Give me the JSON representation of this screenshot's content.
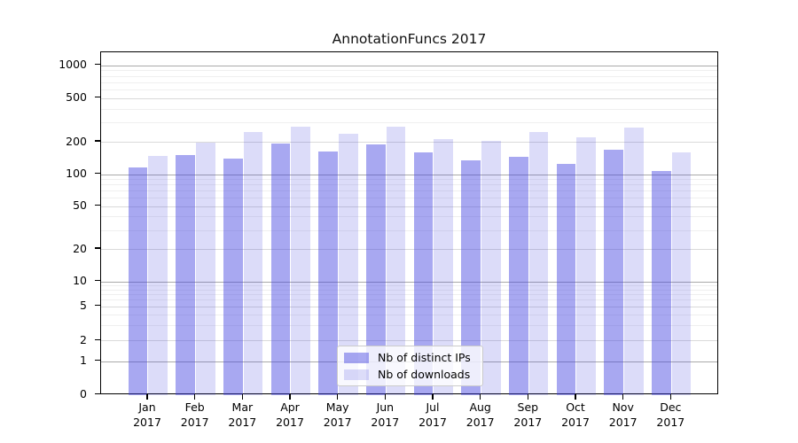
{
  "chart_data": {
    "type": "bar",
    "title": "AnnotationFuncs 2017",
    "yscale": "symlog",
    "grid": true,
    "legend_position": "lower center",
    "ylim": [
      0,
      1300
    ],
    "yticks": [
      0,
      1,
      2,
      5,
      10,
      20,
      50,
      100,
      200,
      500,
      1000
    ],
    "categories": [
      "Jan",
      "Feb",
      "Mar",
      "Apr",
      "May",
      "Jun",
      "Jul",
      "Aug",
      "Sep",
      "Oct",
      "Nov",
      "Dec"
    ],
    "x_ticks": [
      {
        "month": "Jan",
        "year": "2017"
      },
      {
        "month": "Feb",
        "year": "2017"
      },
      {
        "month": "Mar",
        "year": "2017"
      },
      {
        "month": "Apr",
        "year": "2017"
      },
      {
        "month": "May",
        "year": "2017"
      },
      {
        "month": "Jun",
        "year": "2017"
      },
      {
        "month": "Jul",
        "year": "2017"
      },
      {
        "month": "Aug",
        "year": "2017"
      },
      {
        "month": "Sep",
        "year": "2017"
      },
      {
        "month": "Oct",
        "year": "2017"
      },
      {
        "month": "Nov",
        "year": "2017"
      },
      {
        "month": "Dec",
        "year": "2017"
      }
    ],
    "series": [
      {
        "name": "Nb of distinct IPs",
        "color": "rgba(62,62,224,0.45)",
        "values": [
          116,
          152,
          140,
          193,
          164,
          188,
          158,
          134,
          144,
          125,
          169,
          108
        ]
      },
      {
        "name": "Nb of downloads",
        "color": "rgba(62,62,224,0.18)",
        "values": [
          148,
          197,
          246,
          276,
          237,
          276,
          212,
          205,
          245,
          219,
          271,
          160
        ]
      }
    ]
  }
}
